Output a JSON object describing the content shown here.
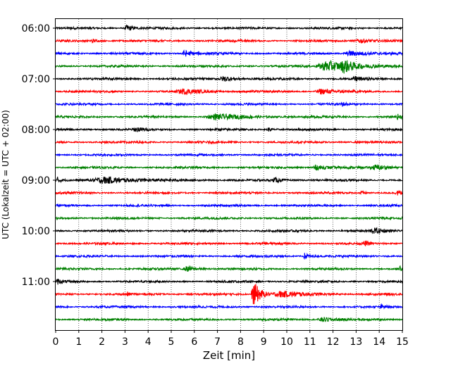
{
  "chart_data": {
    "type": "line",
    "xlabel": "Zeit  [min]",
    "ylabel": "UTC (Lokalzeit = UTC + 02:00)",
    "xlim": [
      0,
      15
    ],
    "xticks": [
      0,
      1,
      2,
      3,
      4,
      5,
      6,
      7,
      8,
      9,
      10,
      11,
      12,
      13,
      14,
      15
    ],
    "x_grid": "dotted",
    "y_tick_labels": [
      "06:00",
      "07:00",
      "08:00",
      "09:00",
      "10:00",
      "11:00"
    ],
    "y_tick_traces": [
      0,
      4,
      8,
      12,
      16,
      20
    ],
    "trace_minutes": 15,
    "traces_per_hour": 4,
    "start_time": "06:00",
    "trace_colors": [
      "#000000",
      "#ff0000",
      "#0000ff",
      "#008000"
    ],
    "events": [
      {
        "trace": 0,
        "t": 3.1,
        "amp": 0.45,
        "dur": 0.45
      },
      {
        "trace": 1,
        "t": 1.6,
        "amp": 0.25,
        "dur": 0.3
      },
      {
        "trace": 1,
        "t": 13.2,
        "amp": 0.3,
        "dur": 0.9
      },
      {
        "trace": 2,
        "t": 5.6,
        "amp": 0.4,
        "dur": 0.7
      },
      {
        "trace": 2,
        "t": 12.8,
        "amp": 0.35,
        "dur": 1.2
      },
      {
        "trace": 3,
        "t": 11.8,
        "amp": 0.75,
        "dur": 1.8
      },
      {
        "trace": 3,
        "t": 12.5,
        "amp": 0.65,
        "dur": 0.6
      },
      {
        "trace": 4,
        "t": 7.3,
        "amp": 0.35,
        "dur": 0.8
      },
      {
        "trace": 4,
        "t": 13.0,
        "amp": 0.3,
        "dur": 0.5
      },
      {
        "trace": 5,
        "t": 5.6,
        "amp": 0.3,
        "dur": 1.4
      },
      {
        "trace": 5,
        "t": 11.5,
        "amp": 0.35,
        "dur": 1.0
      },
      {
        "trace": 6,
        "t": 12.4,
        "amp": 0.25,
        "dur": 0.3
      },
      {
        "trace": 7,
        "t": 7.0,
        "amp": 0.35,
        "dur": 2.0
      },
      {
        "trace": 7,
        "t": 14.8,
        "amp": 0.3,
        "dur": 0.3
      },
      {
        "trace": 8,
        "t": 3.5,
        "amp": 0.25,
        "dur": 0.6
      },
      {
        "trace": 8,
        "t": 9.2,
        "amp": 0.25,
        "dur": 0.3
      },
      {
        "trace": 11,
        "t": 11.3,
        "amp": 0.3,
        "dur": 1.0
      },
      {
        "trace": 11,
        "t": 13.9,
        "amp": 0.35,
        "dur": 1.0
      },
      {
        "trace": 12,
        "t": 2.2,
        "amp": 0.45,
        "dur": 2.2
      },
      {
        "trace": 12,
        "t": 0.1,
        "amp": 0.5,
        "dur": 0.2
      },
      {
        "trace": 12,
        "t": 9.5,
        "amp": 0.3,
        "dur": 0.5
      },
      {
        "trace": 13,
        "t": 13.2,
        "amp": 0.25,
        "dur": 0.3
      },
      {
        "trace": 13,
        "t": 14.8,
        "amp": 0.3,
        "dur": 0.4
      },
      {
        "trace": 16,
        "t": 13.8,
        "amp": 0.3,
        "dur": 0.8
      },
      {
        "trace": 17,
        "t": 13.4,
        "amp": 0.25,
        "dur": 0.4
      },
      {
        "trace": 18,
        "t": 10.8,
        "amp": 0.5,
        "dur": 0.3
      },
      {
        "trace": 19,
        "t": 5.7,
        "amp": 0.35,
        "dur": 0.6
      },
      {
        "trace": 19,
        "t": 14.9,
        "amp": 0.4,
        "dur": 0.15
      },
      {
        "trace": 20,
        "t": 0.1,
        "amp": 0.3,
        "dur": 0.3
      },
      {
        "trace": 21,
        "t": 3.1,
        "amp": 0.35,
        "dur": 0.1
      },
      {
        "trace": 21,
        "t": 8.6,
        "amp": 1.75,
        "dur": 0.5
      },
      {
        "trace": 21,
        "t": 9.8,
        "amp": 0.4,
        "dur": 1.5
      },
      {
        "trace": 22,
        "t": 14.1,
        "amp": 0.25,
        "dur": 0.3
      },
      {
        "trace": 23,
        "t": 11.6,
        "amp": 0.3,
        "dur": 1.0
      }
    ]
  }
}
